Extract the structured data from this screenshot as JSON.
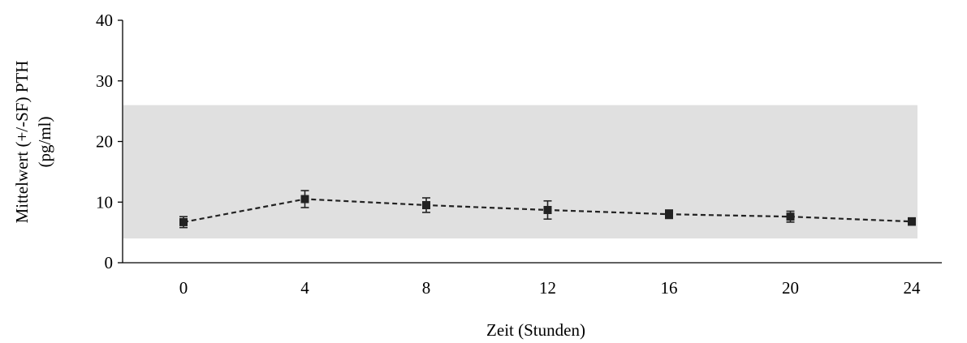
{
  "chart_data": {
    "type": "line",
    "title": "",
    "xlabel": "Zeit (Stunden)",
    "ylabel": [
      "Mittelwert (+/-SF) PTH",
      "(pg/ml)"
    ],
    "x": [
      0,
      4,
      8,
      12,
      16,
      20,
      24
    ],
    "x_tick_labels": [
      "0",
      "4",
      "8",
      "12",
      "16",
      "20",
      "24"
    ],
    "y_ticks": [
      0,
      10,
      20,
      30,
      40
    ],
    "y_tick_labels": [
      "0",
      "10",
      "20",
      "30",
      "40"
    ],
    "ylim": [
      0,
      40
    ],
    "reference_band": {
      "y_low": 4,
      "y_high": 26,
      "color": "#e0e0e0"
    },
    "series": [
      {
        "values": [
          6.7,
          10.5,
          9.5,
          8.7,
          8.0,
          7.6,
          6.8
        ],
        "errors": [
          0.9,
          1.4,
          1.2,
          1.5,
          0.7,
          0.9,
          0.6
        ],
        "line_style": "dashed",
        "marker": "square",
        "color": "#222222"
      }
    ],
    "grid": false
  }
}
